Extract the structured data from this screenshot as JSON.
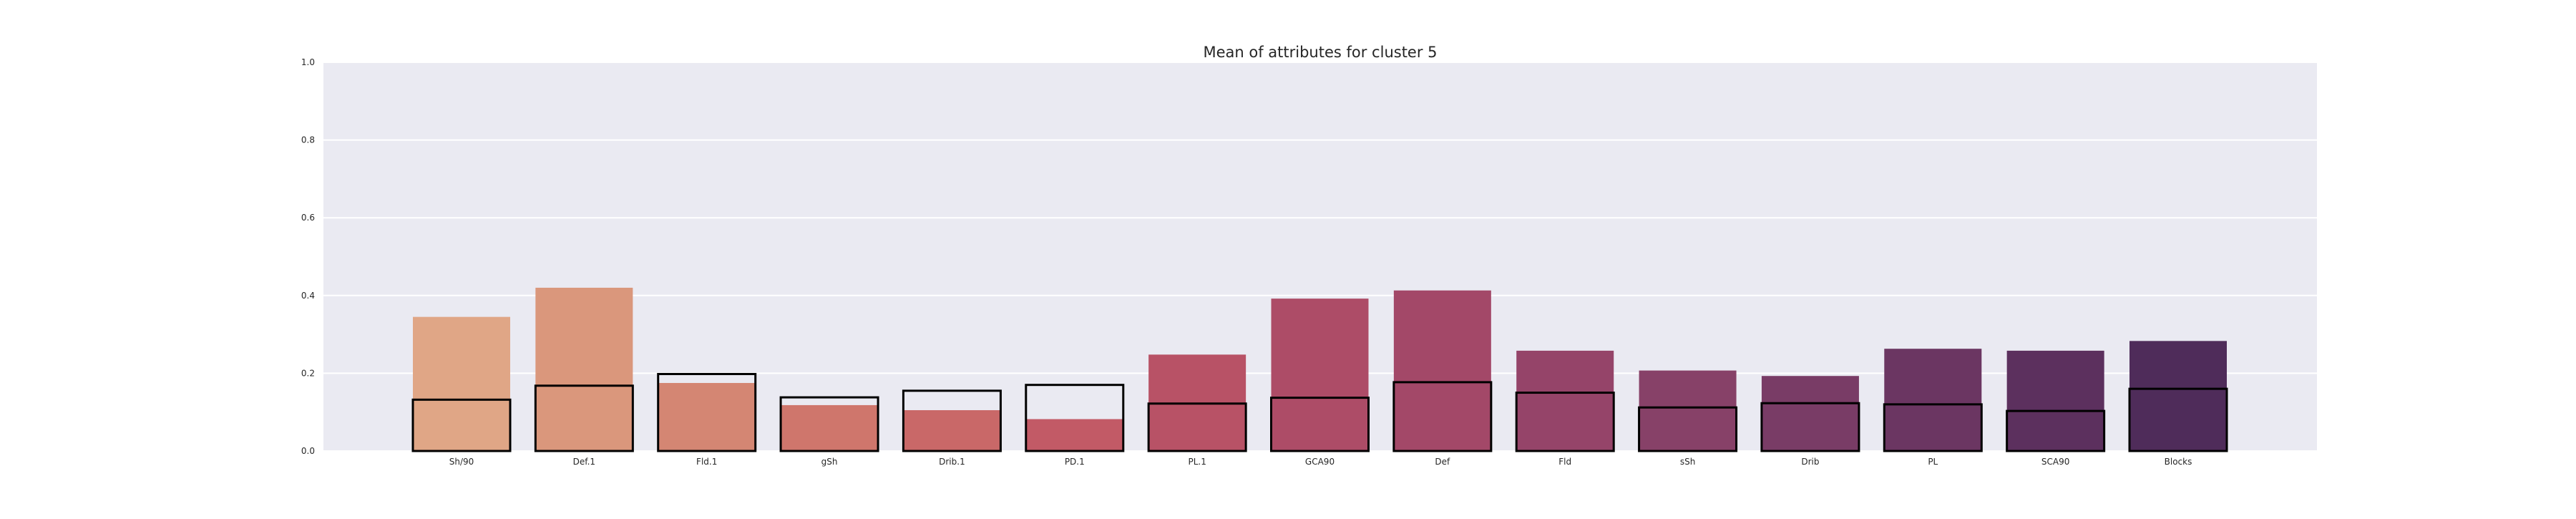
{
  "chart_data": {
    "type": "bar",
    "title": "Mean of attributes for cluster 5",
    "xlabel": "",
    "ylabel": "",
    "ylim": [
      0,
      1.0
    ],
    "yticks": [
      "0.0",
      "0.2",
      "0.4",
      "0.6",
      "0.8",
      "1.0"
    ],
    "grid": true,
    "legend": "none",
    "categories": [
      "Sh/90",
      "Def.1",
      "Fld.1",
      "gSh",
      "Drib.1",
      "PD.1",
      "PL.1",
      "GCA90",
      "Def",
      "Fld",
      "sSh",
      "Drib",
      "PL",
      "SCA90",
      "Blocks"
    ],
    "series": [
      {
        "values": [
          0.345,
          0.42,
          0.175,
          0.118,
          0.105,
          0.082,
          0.248,
          0.392,
          0.413,
          0.258,
          0.207,
          0.193,
          0.263,
          0.258,
          0.283
        ]
      },
      {
        "values": [
          0.132,
          0.168,
          0.198,
          0.138,
          0.155,
          0.17,
          0.122,
          0.137,
          0.177,
          0.15,
          0.112,
          0.123,
          0.12,
          0.103,
          0.16
        ]
      }
    ],
    "colors": {
      "background": "#eaeaf2",
      "grid": "#ffffff",
      "outline": "#000000",
      "bars": [
        "#e0a686",
        "#da977c",
        "#d48673",
        "#cf766c",
        "#c96868",
        "#c25a66",
        "#b85266",
        "#ad4c67",
        "#a34868",
        "#954469",
        "#874168",
        "#793c66",
        "#6b3662",
        "#5c305e",
        "#4f2c5a"
      ]
    }
  }
}
